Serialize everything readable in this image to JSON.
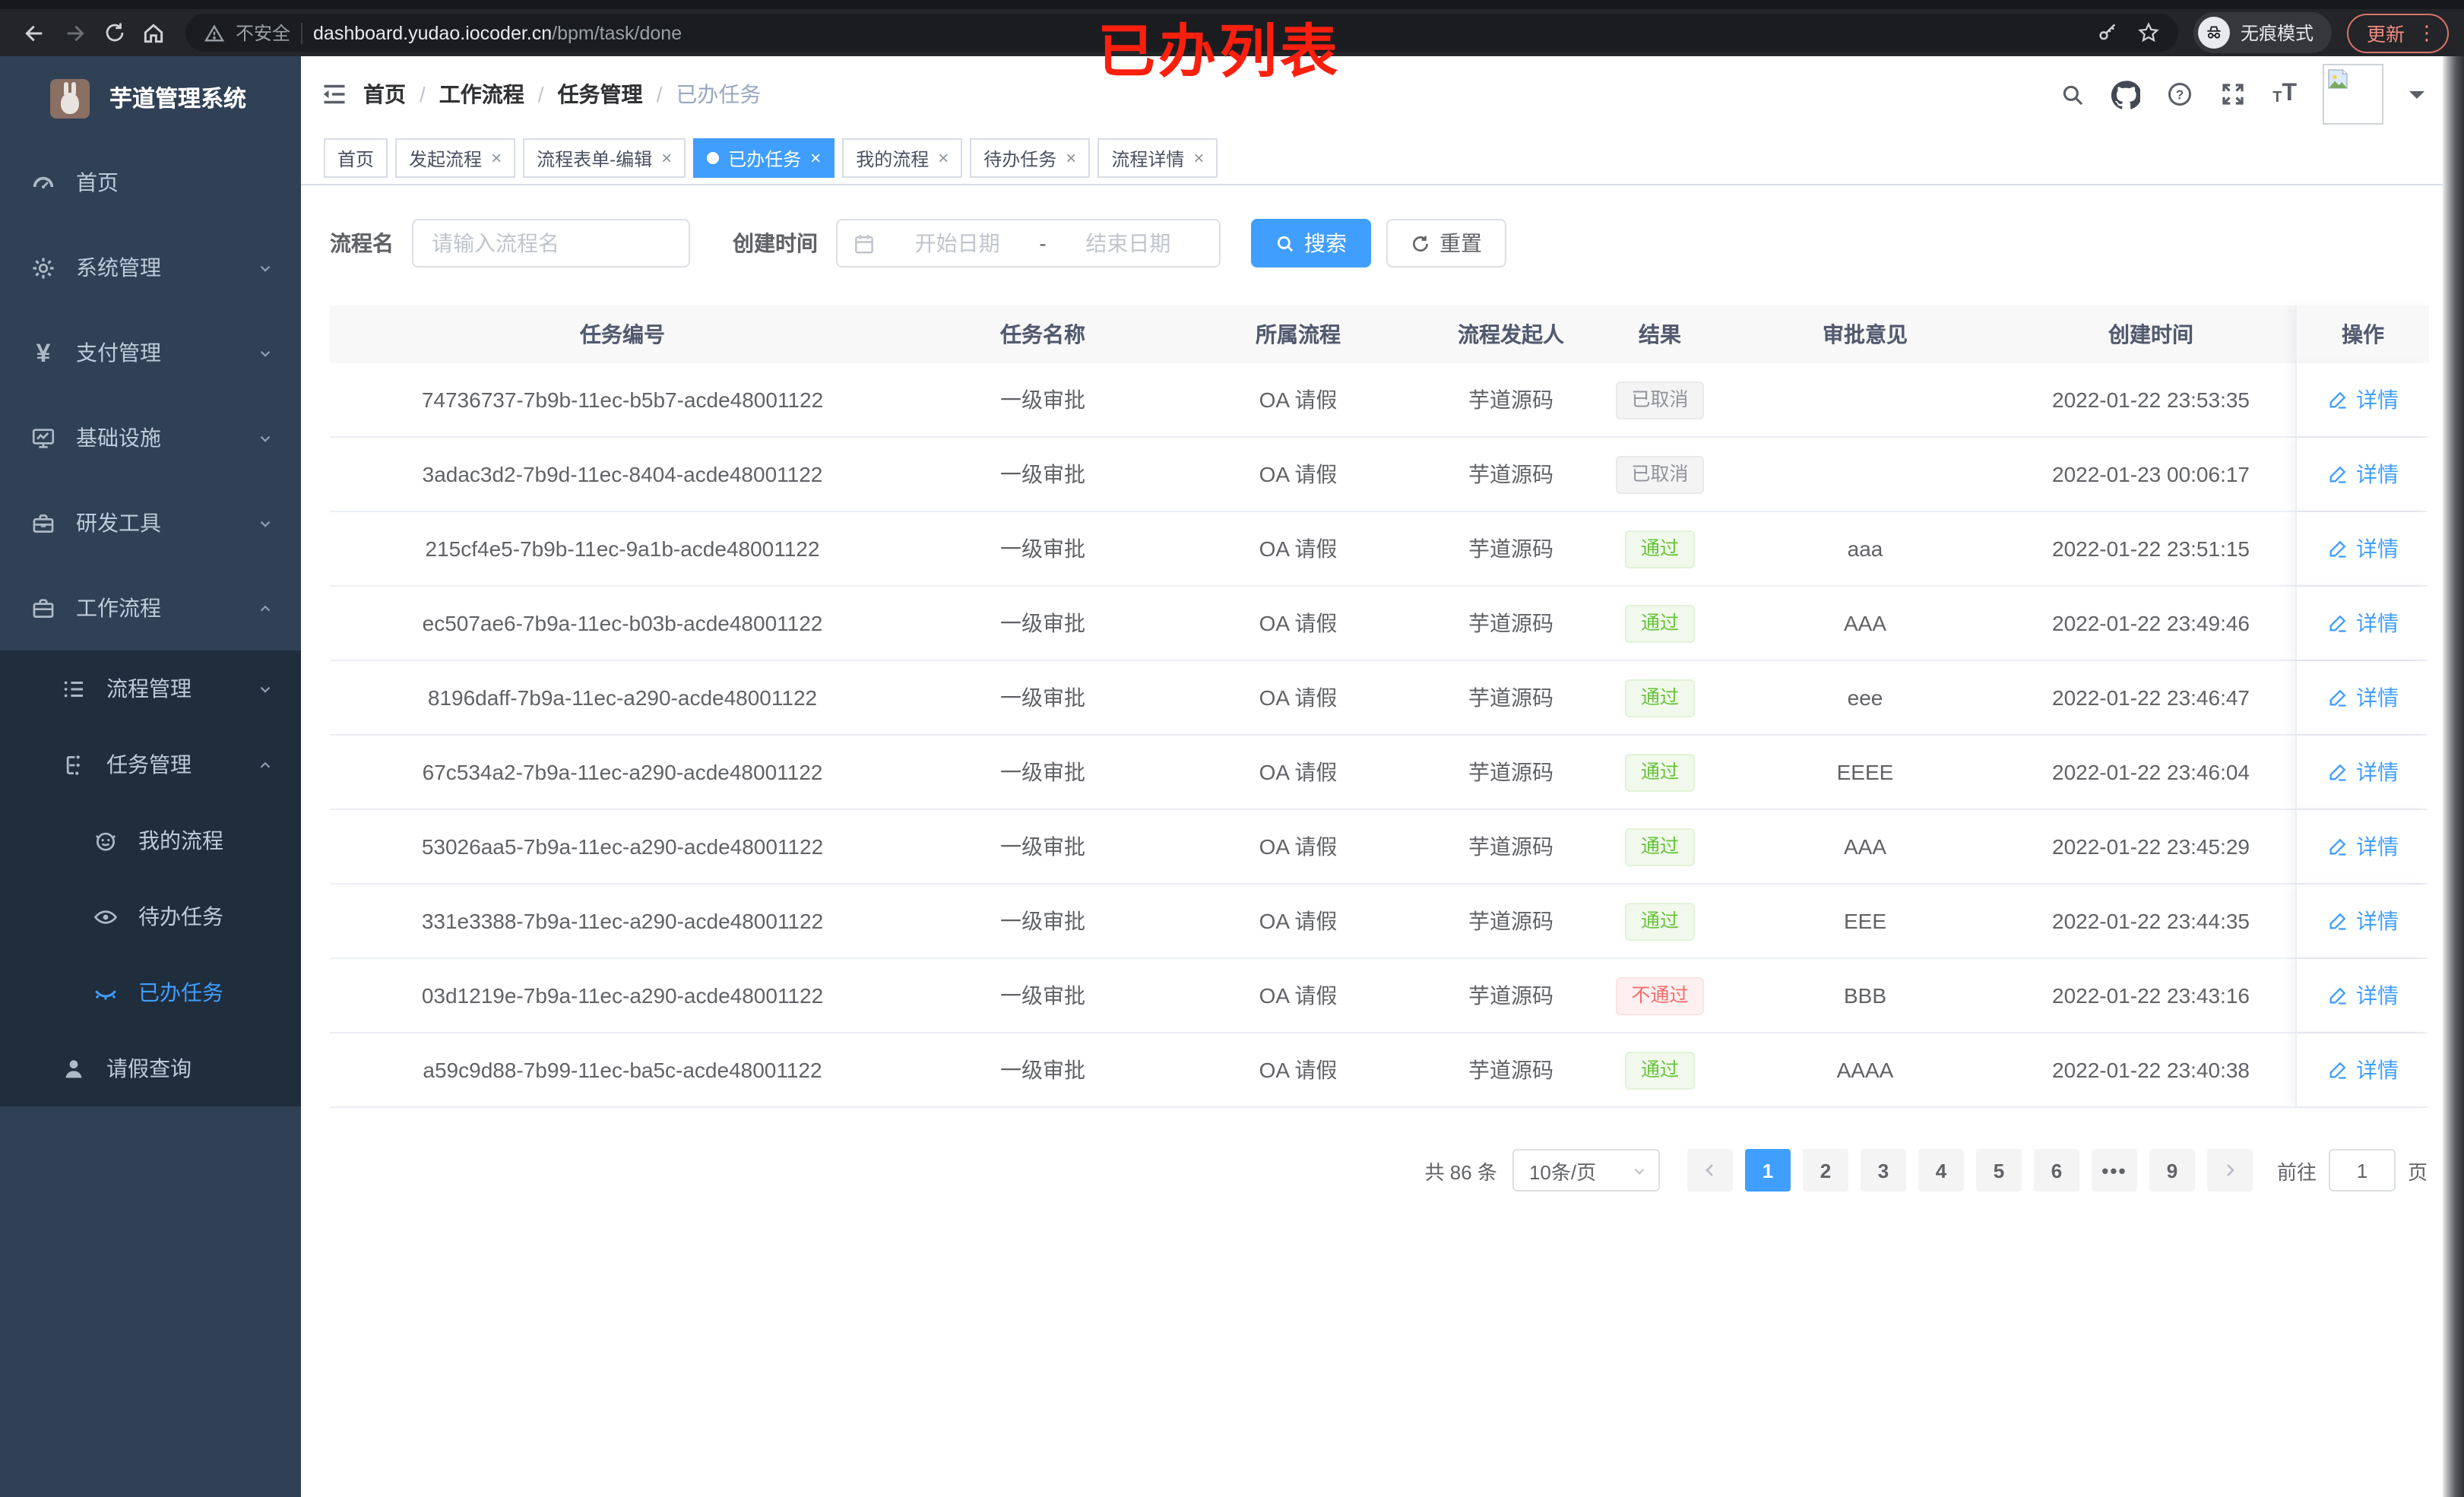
{
  "browser": {
    "security_label": "不安全",
    "url_host": "dashboard.yudao.iocoder.cn",
    "url_path": "/bpm/task/done",
    "incognito_label": "无痕模式",
    "update_label": "更新",
    "annotation": "已办列表"
  },
  "app": {
    "logo_title": "芋道管理系统",
    "breadcrumb": [
      "首页",
      "工作流程",
      "任务管理",
      "已办任务"
    ],
    "breadcrumb_separator": "/"
  },
  "sidebar": {
    "items": [
      {
        "label": "首页",
        "icon": "dashboard-icon",
        "level": 1,
        "arrow": "",
        "dark": false,
        "active": false
      },
      {
        "label": "系统管理",
        "icon": "gear-icon",
        "level": 1,
        "arrow": "down",
        "dark": false,
        "active": false
      },
      {
        "label": "支付管理",
        "icon": "yen-icon",
        "level": 1,
        "arrow": "down",
        "dark": false,
        "active": false
      },
      {
        "label": "基础设施",
        "icon": "monitor-icon",
        "level": 1,
        "arrow": "down",
        "dark": false,
        "active": false
      },
      {
        "label": "研发工具",
        "icon": "toolbox-icon",
        "level": 1,
        "arrow": "down",
        "dark": false,
        "active": false
      },
      {
        "label": "工作流程",
        "icon": "briefcase-icon",
        "level": 1,
        "arrow": "up",
        "dark": false,
        "active": false
      },
      {
        "label": "流程管理",
        "icon": "list-icon",
        "level": 2,
        "arrow": "down",
        "dark": true,
        "active": false
      },
      {
        "label": "任务管理",
        "icon": "flow-icon",
        "level": 2,
        "arrow": "up",
        "dark": true,
        "active": false
      },
      {
        "label": "我的流程",
        "icon": "robot-icon",
        "level": 3,
        "arrow": "",
        "dark": true,
        "active": false
      },
      {
        "label": "待办任务",
        "icon": "eye-open-icon",
        "level": 3,
        "arrow": "",
        "dark": true,
        "active": false
      },
      {
        "label": "已办任务",
        "icon": "eye-closed-icon",
        "level": 3,
        "arrow": "",
        "dark": true,
        "active": true
      },
      {
        "label": "请假查询",
        "icon": "user-icon",
        "level": 2,
        "arrow": "",
        "dark": true,
        "active": false
      }
    ]
  },
  "tabs": [
    {
      "label": "首页",
      "closable": false,
      "active": false
    },
    {
      "label": "发起流程",
      "closable": true,
      "active": false
    },
    {
      "label": "流程表单-编辑",
      "closable": true,
      "active": false
    },
    {
      "label": "已办任务",
      "closable": true,
      "active": true
    },
    {
      "label": "我的流程",
      "closable": true,
      "active": false
    },
    {
      "label": "待办任务",
      "closable": true,
      "active": false
    },
    {
      "label": "流程详情",
      "closable": true,
      "active": false
    }
  ],
  "filters": {
    "name_label": "流程名",
    "name_placeholder": "请输入流程名",
    "time_label": "创建时间",
    "start_placeholder": "开始日期",
    "separator": "-",
    "end_placeholder": "结束日期",
    "search_label": "搜索",
    "reset_label": "重置"
  },
  "table": {
    "columns": [
      "任务编号",
      "任务名称",
      "所属流程",
      "流程发起人",
      "结果",
      "审批意见",
      "创建时间",
      "操作"
    ],
    "detail_label": "详情",
    "rows": [
      {
        "id": "74736737-7b9b-11ec-b5b7-acde48001122",
        "name": "一级审批",
        "process": "OA 请假",
        "starter": "芋道源码",
        "result": "已取消",
        "result_type": "info",
        "comment": "",
        "created": "2022-01-22 23:53:35"
      },
      {
        "id": "3adac3d2-7b9d-11ec-8404-acde48001122",
        "name": "一级审批",
        "process": "OA 请假",
        "starter": "芋道源码",
        "result": "已取消",
        "result_type": "info",
        "comment": "",
        "created": "2022-01-23 00:06:17"
      },
      {
        "id": "215cf4e5-7b9b-11ec-9a1b-acde48001122",
        "name": "一级审批",
        "process": "OA 请假",
        "starter": "芋道源码",
        "result": "通过",
        "result_type": "success",
        "comment": "aaa",
        "created": "2022-01-22 23:51:15"
      },
      {
        "id": "ec507ae6-7b9a-11ec-b03b-acde48001122",
        "name": "一级审批",
        "process": "OA 请假",
        "starter": "芋道源码",
        "result": "通过",
        "result_type": "success",
        "comment": "AAA",
        "created": "2022-01-22 23:49:46"
      },
      {
        "id": "8196daff-7b9a-11ec-a290-acde48001122",
        "name": "一级审批",
        "process": "OA 请假",
        "starter": "芋道源码",
        "result": "通过",
        "result_type": "success",
        "comment": "eee",
        "created": "2022-01-22 23:46:47"
      },
      {
        "id": "67c534a2-7b9a-11ec-a290-acde48001122",
        "name": "一级审批",
        "process": "OA 请假",
        "starter": "芋道源码",
        "result": "通过",
        "result_type": "success",
        "comment": "EEEE",
        "created": "2022-01-22 23:46:04"
      },
      {
        "id": "53026aa5-7b9a-11ec-a290-acde48001122",
        "name": "一级审批",
        "process": "OA 请假",
        "starter": "芋道源码",
        "result": "通过",
        "result_type": "success",
        "comment": "AAA",
        "created": "2022-01-22 23:45:29"
      },
      {
        "id": "331e3388-7b9a-11ec-a290-acde48001122",
        "name": "一级审批",
        "process": "OA 请假",
        "starter": "芋道源码",
        "result": "通过",
        "result_type": "success",
        "comment": "EEE",
        "created": "2022-01-22 23:44:35"
      },
      {
        "id": "03d1219e-7b9a-11ec-a290-acde48001122",
        "name": "一级审批",
        "process": "OA 请假",
        "starter": "芋道源码",
        "result": "不通过",
        "result_type": "danger",
        "comment": "BBB",
        "created": "2022-01-22 23:43:16"
      },
      {
        "id": "a59c9d88-7b99-11ec-ba5c-acde48001122",
        "name": "一级审批",
        "process": "OA 请假",
        "starter": "芋道源码",
        "result": "通过",
        "result_type": "success",
        "comment": "AAAA",
        "created": "2022-01-22 23:40:38"
      }
    ]
  },
  "pagination": {
    "total_label": "共 86 条",
    "page_size_label": "10条/页",
    "pages": [
      "1",
      "2",
      "3",
      "4",
      "5",
      "6",
      "•••",
      "9"
    ],
    "active_page": "1",
    "goto_label": "前往",
    "goto_value": "1",
    "page_unit": "页"
  },
  "colors": {
    "accent_blue": "#409eff",
    "success_green": "#67c23a",
    "danger_red": "#f56c6c",
    "info_gray": "#909399",
    "sidebar_bg": "#304156",
    "submenu_bg": "#1f2d3d",
    "annotation_red": "#fb1f0e"
  }
}
